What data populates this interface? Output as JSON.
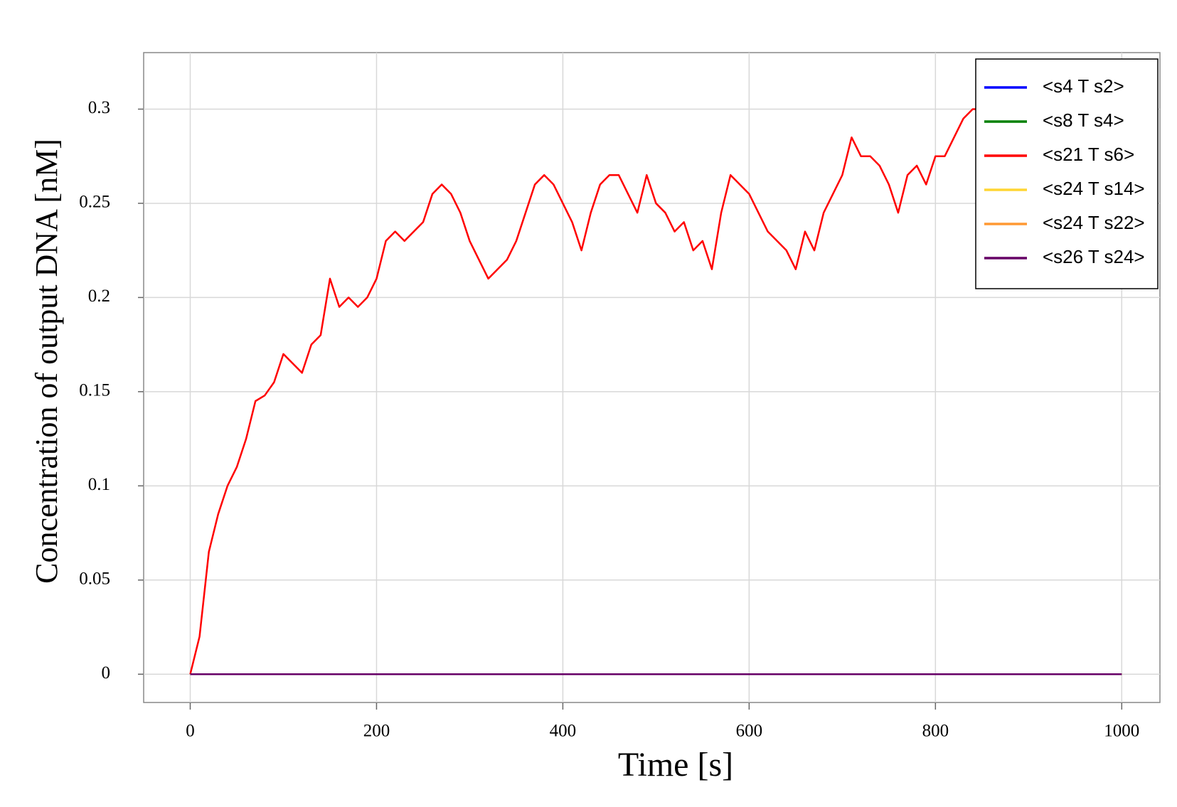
{
  "chart_data": {
    "type": "line",
    "xlabel": "Time [s]",
    "ylabel": "Concentration of output DNA [nM]",
    "x": [
      0,
      10,
      20,
      30,
      40,
      50,
      60,
      70,
      80,
      90,
      100,
      110,
      120,
      130,
      140,
      150,
      160,
      170,
      180,
      190,
      200,
      210,
      220,
      230,
      240,
      250,
      260,
      270,
      280,
      290,
      300,
      310,
      320,
      330,
      340,
      350,
      360,
      370,
      380,
      390,
      400,
      410,
      420,
      430,
      440,
      450,
      460,
      470,
      480,
      490,
      500,
      510,
      520,
      530,
      540,
      550,
      560,
      570,
      580,
      590,
      600,
      610,
      620,
      630,
      640,
      650,
      660,
      670,
      680,
      690,
      700,
      710,
      720,
      730,
      740,
      750,
      760,
      770,
      780,
      790,
      800,
      810,
      820,
      830,
      840,
      850,
      860,
      870,
      880,
      890,
      900,
      910,
      920,
      930,
      940,
      950,
      960,
      970,
      980,
      990,
      1000
    ],
    "series": [
      {
        "name": "<s4 T s2>",
        "color": "#0000ff",
        "values": [
          0,
          0,
          0,
          0,
          0,
          0,
          0,
          0,
          0,
          0,
          0,
          0,
          0,
          0,
          0,
          0,
          0,
          0,
          0,
          0,
          0,
          0,
          0,
          0,
          0,
          0,
          0,
          0,
          0,
          0,
          0,
          0,
          0,
          0,
          0,
          0,
          0,
          0,
          0,
          0,
          0,
          0,
          0,
          0,
          0,
          0,
          0,
          0,
          0,
          0,
          0,
          0,
          0,
          0,
          0,
          0,
          0,
          0,
          0,
          0,
          0,
          0,
          0,
          0,
          0,
          0,
          0,
          0,
          0,
          0,
          0,
          0,
          0,
          0,
          0,
          0,
          0,
          0,
          0,
          0,
          0,
          0,
          0,
          0,
          0,
          0,
          0,
          0,
          0,
          0,
          0,
          0,
          0,
          0,
          0,
          0,
          0,
          0,
          0,
          0,
          0
        ]
      },
      {
        "name": "<s8 T s4>",
        "color": "#008000",
        "values": [
          0,
          0,
          0,
          0,
          0,
          0,
          0,
          0,
          0,
          0,
          0,
          0,
          0,
          0,
          0,
          0,
          0,
          0,
          0,
          0,
          0,
          0,
          0,
          0,
          0,
          0,
          0,
          0,
          0,
          0,
          0,
          0,
          0,
          0,
          0,
          0,
          0,
          0,
          0,
          0,
          0,
          0,
          0,
          0,
          0,
          0,
          0,
          0,
          0,
          0,
          0,
          0,
          0,
          0,
          0,
          0,
          0,
          0,
          0,
          0,
          0,
          0,
          0,
          0,
          0,
          0,
          0,
          0,
          0,
          0,
          0,
          0,
          0,
          0,
          0,
          0,
          0,
          0,
          0,
          0,
          0,
          0,
          0,
          0,
          0,
          0,
          0,
          0,
          0,
          0,
          0,
          0,
          0,
          0,
          0,
          0,
          0,
          0,
          0,
          0,
          0
        ]
      },
      {
        "name": "<s21 T s6>",
        "color": "#ff0000",
        "values": [
          0,
          0.02,
          0.065,
          0.085,
          0.1,
          0.11,
          0.125,
          0.145,
          0.148,
          0.155,
          0.17,
          0.165,
          0.16,
          0.175,
          0.18,
          0.21,
          0.195,
          0.2,
          0.195,
          0.2,
          0.21,
          0.23,
          0.235,
          0.23,
          0.235,
          0.24,
          0.255,
          0.26,
          0.255,
          0.245,
          0.23,
          0.22,
          0.21,
          0.215,
          0.22,
          0.23,
          0.245,
          0.26,
          0.265,
          0.26,
          0.25,
          0.24,
          0.225,
          0.245,
          0.26,
          0.265,
          0.265,
          0.255,
          0.245,
          0.265,
          0.25,
          0.245,
          0.235,
          0.24,
          0.225,
          0.23,
          0.215,
          0.245,
          0.265,
          0.26,
          0.255,
          0.245,
          0.235,
          0.23,
          0.225,
          0.215,
          0.235,
          0.225,
          0.245,
          0.255,
          0.265,
          0.285,
          0.275,
          0.275,
          0.27,
          0.26,
          0.245,
          0.265,
          0.27,
          0.26,
          0.275,
          0.275,
          0.285,
          0.295,
          0.3,
          0.3,
          0.305,
          0.3,
          0.31,
          0.305,
          0.31,
          0.3,
          0.305,
          0.31,
          0.305,
          0.3,
          0.31,
          0.305,
          0.31,
          0.3,
          0.305
        ]
      },
      {
        "name": "<s24 T s14>",
        "color": "#ffd633",
        "values": [
          0,
          0,
          0,
          0,
          0,
          0,
          0,
          0,
          0,
          0,
          0,
          0,
          0,
          0,
          0,
          0,
          0,
          0,
          0,
          0,
          0,
          0,
          0,
          0,
          0,
          0,
          0,
          0,
          0,
          0,
          0,
          0,
          0,
          0,
          0,
          0,
          0,
          0,
          0,
          0,
          0,
          0,
          0,
          0,
          0,
          0,
          0,
          0,
          0,
          0,
          0,
          0,
          0,
          0,
          0,
          0,
          0,
          0,
          0,
          0,
          0,
          0,
          0,
          0,
          0,
          0,
          0,
          0,
          0,
          0,
          0,
          0,
          0,
          0,
          0,
          0,
          0,
          0,
          0,
          0,
          0,
          0,
          0,
          0,
          0,
          0,
          0,
          0,
          0,
          0,
          0,
          0,
          0,
          0,
          0,
          0,
          0,
          0,
          0,
          0,
          0
        ]
      },
      {
        "name": "<s24 T s22>",
        "color": "#ff9933",
        "values": [
          0,
          0,
          0,
          0,
          0,
          0,
          0,
          0,
          0,
          0,
          0,
          0,
          0,
          0,
          0,
          0,
          0,
          0,
          0,
          0,
          0,
          0,
          0,
          0,
          0,
          0,
          0,
          0,
          0,
          0,
          0,
          0,
          0,
          0,
          0,
          0,
          0,
          0,
          0,
          0,
          0,
          0,
          0,
          0,
          0,
          0,
          0,
          0,
          0,
          0,
          0,
          0,
          0,
          0,
          0,
          0,
          0,
          0,
          0,
          0,
          0,
          0,
          0,
          0,
          0,
          0,
          0,
          0,
          0,
          0,
          0,
          0,
          0,
          0,
          0,
          0,
          0,
          0,
          0,
          0,
          0,
          0,
          0,
          0,
          0,
          0,
          0,
          0,
          0,
          0,
          0,
          0,
          0,
          0,
          0,
          0,
          0,
          0,
          0,
          0,
          0
        ]
      },
      {
        "name": "<s26 T s24>",
        "color": "#660066",
        "values": [
          0,
          0,
          0,
          0,
          0,
          0,
          0,
          0,
          0,
          0,
          0,
          0,
          0,
          0,
          0,
          0,
          0,
          0,
          0,
          0,
          0,
          0,
          0,
          0,
          0,
          0,
          0,
          0,
          0,
          0,
          0,
          0,
          0,
          0,
          0,
          0,
          0,
          0,
          0,
          0,
          0,
          0,
          0,
          0,
          0,
          0,
          0,
          0,
          0,
          0,
          0,
          0,
          0,
          0,
          0,
          0,
          0,
          0,
          0,
          0,
          0,
          0,
          0,
          0,
          0,
          0,
          0,
          0,
          0,
          0,
          0,
          0,
          0,
          0,
          0,
          0,
          0,
          0,
          0,
          0,
          0,
          0,
          0,
          0,
          0,
          0,
          0,
          0,
          0,
          0,
          0,
          0,
          0,
          0,
          0,
          0,
          0,
          0,
          0,
          0,
          0
        ]
      }
    ],
    "xlim": [
      -50,
      1041
    ],
    "ylim": [
      -0.015,
      0.33
    ],
    "xticks": [
      0,
      200,
      400,
      600,
      800,
      1000
    ],
    "yticks": [
      0,
      0.05,
      0.1,
      0.15,
      0.2,
      0.25,
      0.3
    ],
    "grid": true,
    "legend": "upper right"
  }
}
